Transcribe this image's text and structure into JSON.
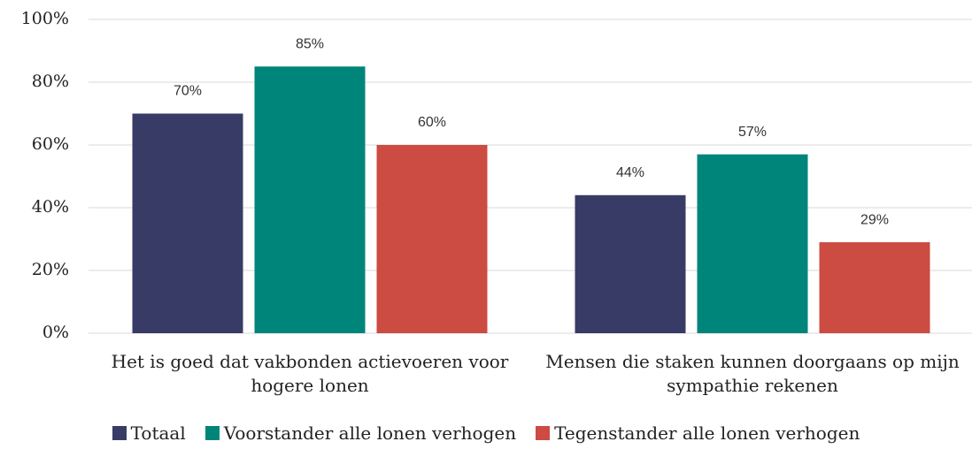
{
  "chart_data": {
    "type": "bar",
    "categories": [
      "Het is goed dat vakbonden actievoeren voor hogere lonen",
      "Mensen die staken kunnen doorgaans op mijn sympathie rekenen"
    ],
    "series": [
      {
        "name": "Totaal",
        "color": "#383b66",
        "values": [
          70,
          44
        ],
        "value_labels": [
          "70%",
          "44%"
        ]
      },
      {
        "name": "Voorstander alle lonen verhogen",
        "color": "#00857a",
        "values": [
          85,
          57
        ],
        "value_labels": [
          "85%",
          "57%"
        ]
      },
      {
        "name": "Tegenstander alle lonen verhogen",
        "color": "#cc4b42",
        "values": [
          60,
          29
        ],
        "value_labels": [
          "60%",
          "29%"
        ]
      }
    ],
    "ylim": [
      0,
      100
    ],
    "yticks": [
      {
        "value": 0,
        "label": "0%"
      },
      {
        "value": 20,
        "label": "20%"
      },
      {
        "value": 40,
        "label": "40%"
      },
      {
        "value": 60,
        "label": "60%"
      },
      {
        "value": 80,
        "label": "80%"
      },
      {
        "value": 100,
        "label": "100%"
      }
    ],
    "grid": true,
    "legend": "bottom"
  }
}
